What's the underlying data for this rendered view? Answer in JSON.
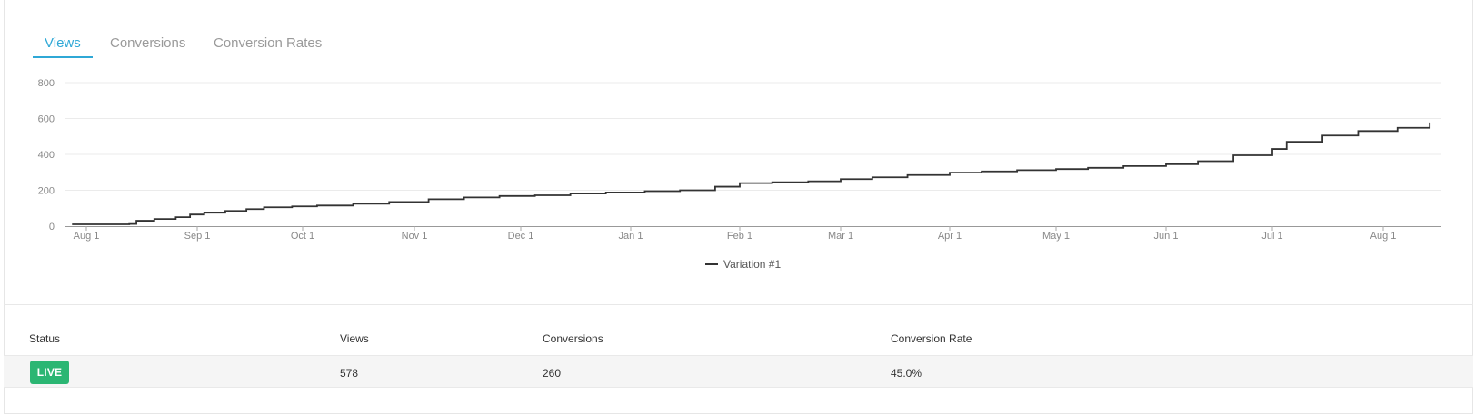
{
  "tabs": [
    {
      "label": "Views",
      "active": true
    },
    {
      "label": "Conversions",
      "active": false
    },
    {
      "label": "Conversion Rates",
      "active": false
    }
  ],
  "chart_data": {
    "type": "line",
    "step": true,
    "xlabel": "",
    "ylabel": "",
    "ylim": [
      0,
      800
    ],
    "yticks": [
      0,
      200,
      400,
      600,
      800
    ],
    "xticks": [
      "Aug 1",
      "Sep 1",
      "Oct 1",
      "Nov 1",
      "Dec 1",
      "Jan 1",
      "Feb 1",
      "Mar 1",
      "Apr 1",
      "May 1",
      "Jun 1",
      "Jul 1",
      "Aug 1"
    ],
    "legend": "bottom-center",
    "grid": true,
    "series": [
      {
        "name": "Variation #1",
        "color": "#333333",
        "x": [
          "Jul 28",
          "Aug 13",
          "Aug 15",
          "Aug 20",
          "Aug 26",
          "Aug 30",
          "Sep 3",
          "Sep 9",
          "Sep 15",
          "Sep 20",
          "Sep 28",
          "Oct 5",
          "Oct 15",
          "Oct 25",
          "Nov 5",
          "Nov 15",
          "Nov 25",
          "Dec 5",
          "Dec 15",
          "Dec 25",
          "Jan 5",
          "Jan 15",
          "Jan 25",
          "Feb 1",
          "Feb 10",
          "Feb 20",
          "Mar 1",
          "Mar 10",
          "Mar 20",
          "Apr 1",
          "Apr 10",
          "Apr 20",
          "May 1",
          "May 10",
          "May 20",
          "Jun 1",
          "Jun 10",
          "Jun 20",
          "Jul 1",
          "Jul 5",
          "Jul 15",
          "Jul 25",
          "Aug 5",
          "Aug 14"
        ],
        "values": [
          10,
          12,
          30,
          40,
          50,
          65,
          75,
          85,
          95,
          105,
          110,
          115,
          125,
          135,
          150,
          160,
          168,
          172,
          182,
          188,
          195,
          200,
          220,
          240,
          245,
          250,
          262,
          272,
          285,
          298,
          305,
          312,
          318,
          325,
          335,
          345,
          362,
          395,
          430,
          470,
          505,
          530,
          548,
          578
        ]
      }
    ]
  },
  "table": {
    "headers": [
      "Status",
      "Views",
      "Conversions",
      "Conversion Rate"
    ],
    "row": {
      "status": "LIVE",
      "views": "578",
      "conversions": "260",
      "rate": "45.0%"
    }
  },
  "colors": {
    "accent": "#2fa8d6",
    "live": "#2bb673"
  }
}
